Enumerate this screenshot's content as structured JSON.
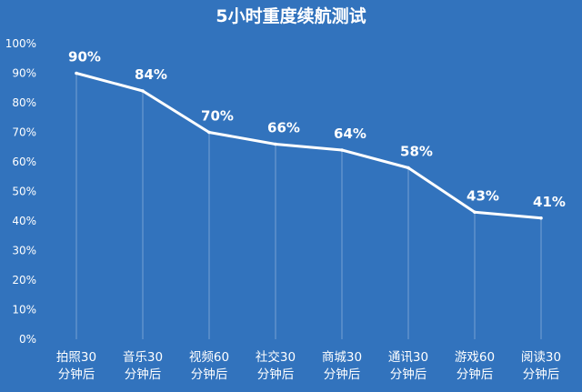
{
  "chart_data": {
    "type": "line",
    "title": "5小时重度续航测试",
    "xlabel": "",
    "ylabel": "",
    "ylim": [
      0,
      100
    ],
    "yticks": [
      "0%",
      "10%",
      "20%",
      "30%",
      "40%",
      "50%",
      "60%",
      "70%",
      "80%",
      "90%",
      "100%"
    ],
    "categories": [
      [
        "拍照30",
        "分钟后"
      ],
      [
        "音乐30",
        "分钟后"
      ],
      [
        "视频60",
        "分钟后"
      ],
      [
        "社交30",
        "分钟后"
      ],
      [
        "商城30",
        "分钟后"
      ],
      [
        "通讯30",
        "分钟后"
      ],
      [
        "游戏60",
        "分钟后"
      ],
      [
        "阅读30",
        "分钟后"
      ]
    ],
    "series": [
      {
        "values": [
          90,
          84,
          70,
          66,
          64,
          58,
          43,
          41
        ],
        "labels": [
          "90%",
          "84%",
          "70%",
          "66%",
          "64%",
          "58%",
          "43%",
          "41%"
        ]
      }
    ],
    "grid": "vertical",
    "legend": "none",
    "colors": {
      "background": "#3273bd",
      "line": "#ffffff",
      "text": "#ffffff"
    }
  }
}
